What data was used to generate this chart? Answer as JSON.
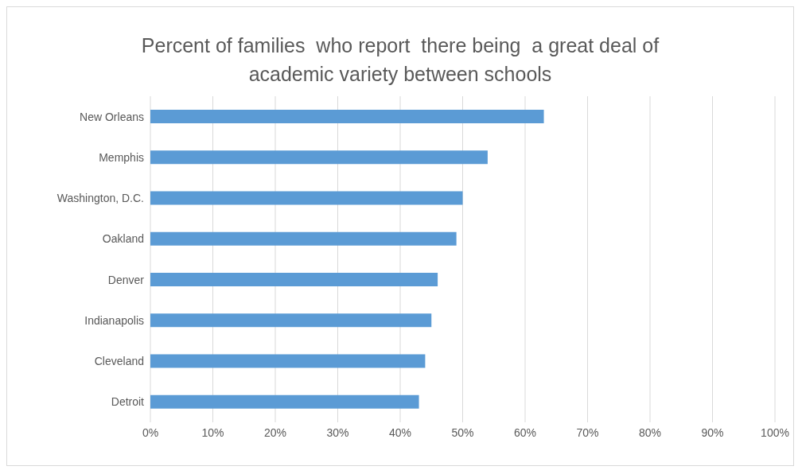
{
  "chart_data": {
    "type": "bar",
    "orientation": "horizontal",
    "title": "Percent of families  who report  there being  a great deal of academic variety between schools",
    "categories": [
      "New Orleans",
      "Memphis",
      "Washington, D.C.",
      "Oakland",
      "Denver",
      "Indianapolis",
      "Cleveland",
      "Detroit"
    ],
    "values": [
      63,
      54,
      50,
      49,
      46,
      45,
      44,
      43
    ],
    "color": "#5b9bd5",
    "xlim": [
      0,
      100
    ],
    "xticks": [
      {
        "value": 0,
        "label": "0%"
      },
      {
        "value": 10,
        "label": "10%"
      },
      {
        "value": 20,
        "label": "20%"
      },
      {
        "value": 30,
        "label": "30%"
      },
      {
        "value": 40,
        "label": "40%"
      },
      {
        "value": 50,
        "label": "50%"
      },
      {
        "value": 60,
        "label": "60%"
      },
      {
        "value": 70,
        "label": "70%"
      },
      {
        "value": 80,
        "label": "80%"
      },
      {
        "value": 90,
        "label": "90%"
      },
      {
        "value": 100,
        "label": "100%"
      }
    ],
    "grid": "x"
  }
}
